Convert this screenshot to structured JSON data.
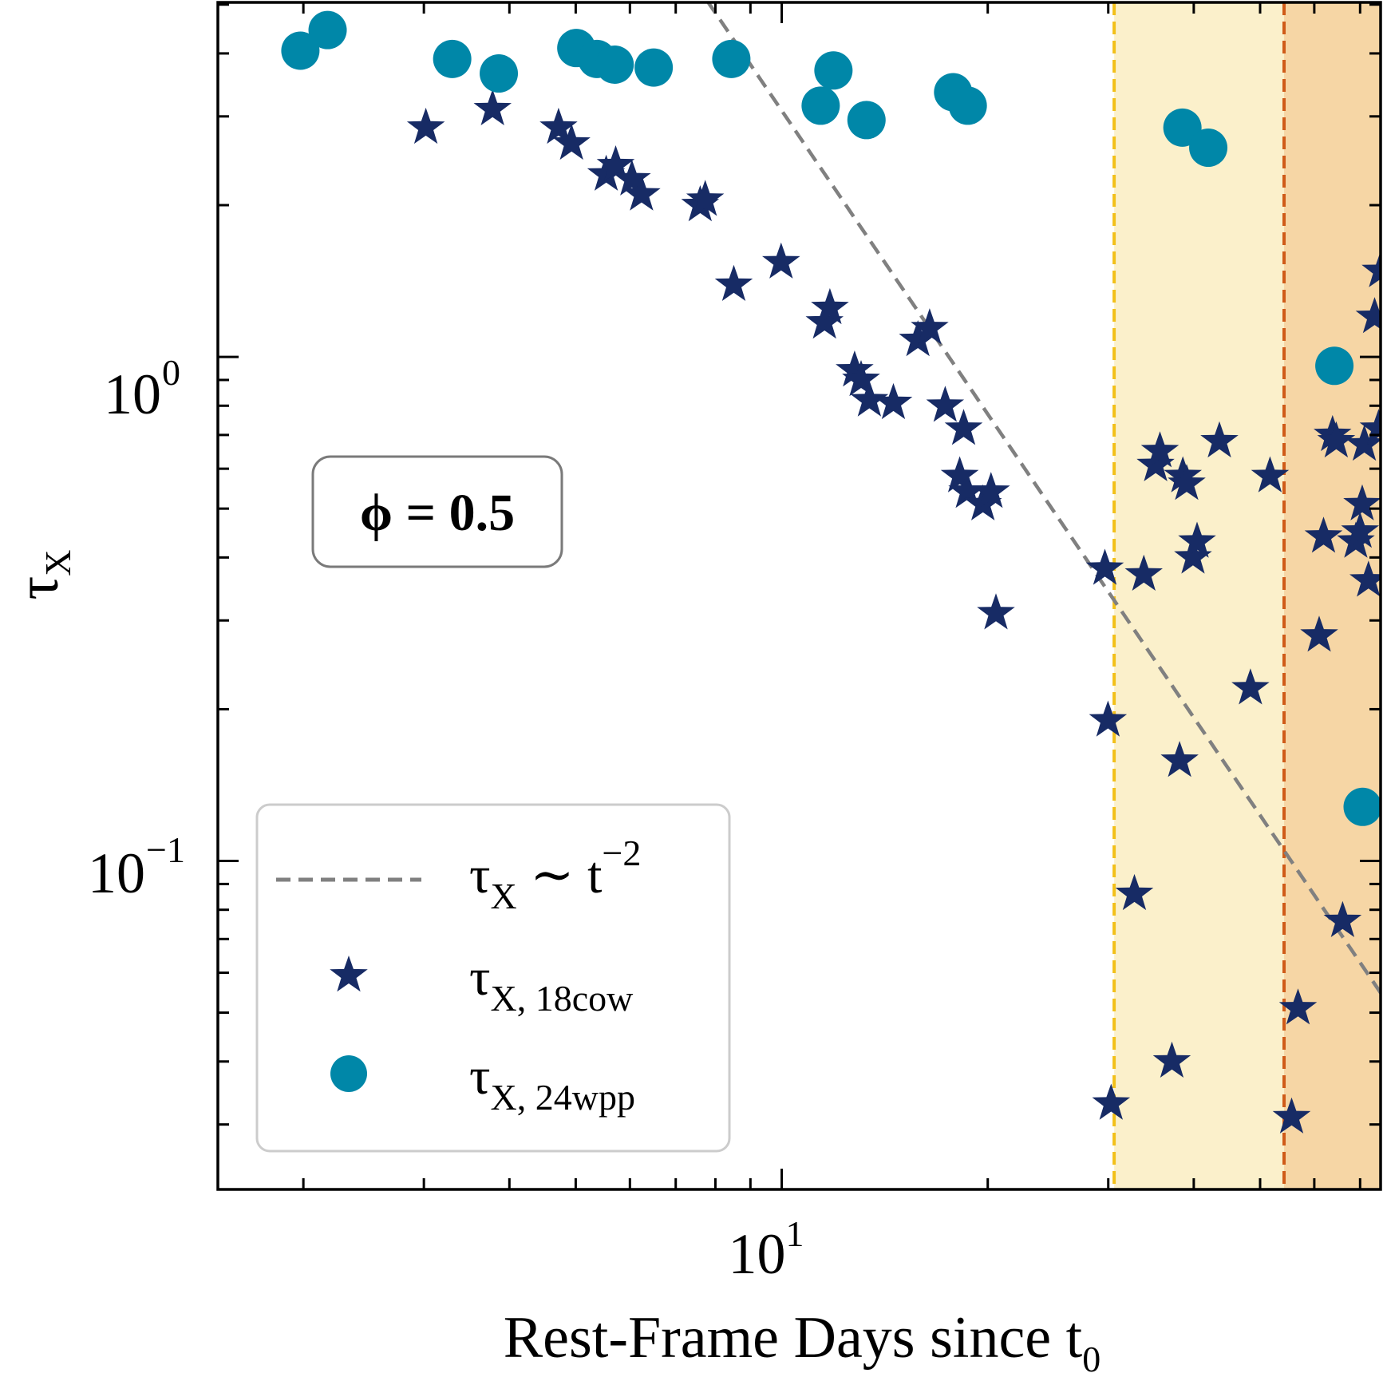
{
  "chart_data": {
    "type": "scatter",
    "xscale": "log",
    "yscale": "log",
    "xlim": [
      1.5,
      75
    ],
    "ylim": [
      0.0223,
      5.05
    ],
    "xlabel": "Rest-Frame Days since t",
    "xlabel_sub": "0",
    "ylabel": "τ",
    "ylabel_sub": "X",
    "x_ticks": [
      {
        "base": "10",
        "exp": "1",
        "value": 10
      }
    ],
    "y_ticks": [
      {
        "base": "10",
        "exp": "−1",
        "value": 0.1
      },
      {
        "base": "10",
        "exp": "0",
        "value": 1
      }
    ],
    "annotation": {
      "text": "ϕ = 0.5"
    },
    "shaded_regions": [
      {
        "x_start": 30.6,
        "x_end": 54.2,
        "color": "#fbf0cb"
      },
      {
        "x_start": 54.2,
        "x_end": 75,
        "color": "#f6d6a5"
      }
    ],
    "vertical_lines": [
      {
        "x": 30.6,
        "color": "#f2c019"
      },
      {
        "x": 54.2,
        "color": "#cf5a18"
      }
    ],
    "reference_line": {
      "label_base": "τ",
      "label_sub": "X",
      "label_rest": " ∼ t",
      "label_exp": "−2",
      "amplitude": 308,
      "exponent": -2,
      "color": "#808080"
    },
    "series": [
      {
        "name_base": "τ",
        "name_sub": "X, 18cow",
        "marker": "star",
        "color": "#172b65",
        "points": [
          {
            "x": 3.02,
            "y": 2.85
          },
          {
            "x": 3.78,
            "y": 3.1
          },
          {
            "x": 4.72,
            "y": 2.85
          },
          {
            "x": 4.93,
            "y": 2.65
          },
          {
            "x": 5.54,
            "y": 2.3
          },
          {
            "x": 5.72,
            "y": 2.4
          },
          {
            "x": 6.04,
            "y": 2.25
          },
          {
            "x": 6.24,
            "y": 2.1
          },
          {
            "x": 7.6,
            "y": 2.0
          },
          {
            "x": 7.73,
            "y": 2.05
          },
          {
            "x": 8.51,
            "y": 1.39
          },
          {
            "x": 9.98,
            "y": 1.54
          },
          {
            "x": 11.55,
            "y": 1.17
          },
          {
            "x": 11.76,
            "y": 1.25
          },
          {
            "x": 12.78,
            "y": 0.94
          },
          {
            "x": 13.06,
            "y": 0.9
          },
          {
            "x": 13.43,
            "y": 0.82
          },
          {
            "x": 14.56,
            "y": 0.81
          },
          {
            "x": 15.81,
            "y": 1.08
          },
          {
            "x": 16.45,
            "y": 1.14
          },
          {
            "x": 17.33,
            "y": 0.8
          },
          {
            "x": 18.2,
            "y": 0.58
          },
          {
            "x": 18.44,
            "y": 0.72
          },
          {
            "x": 18.67,
            "y": 0.54
          },
          {
            "x": 19.68,
            "y": 0.51
          },
          {
            "x": 20.22,
            "y": 0.54
          },
          {
            "x": 20.56,
            "y": 0.31
          },
          {
            "x": 29.66,
            "y": 0.38
          },
          {
            "x": 29.97,
            "y": 0.19
          },
          {
            "x": 30.29,
            "y": 0.033
          },
          {
            "x": 32.76,
            "y": 0.086
          },
          {
            "x": 33.81,
            "y": 0.37
          },
          {
            "x": 35.18,
            "y": 0.61
          },
          {
            "x": 35.7,
            "y": 0.65
          },
          {
            "x": 37.16,
            "y": 0.04
          },
          {
            "x": 38.14,
            "y": 0.158
          },
          {
            "x": 38.56,
            "y": 0.58
          },
          {
            "x": 39.06,
            "y": 0.56
          },
          {
            "x": 39.9,
            "y": 0.4
          },
          {
            "x": 40.45,
            "y": 0.43
          },
          {
            "x": 43.6,
            "y": 0.68
          },
          {
            "x": 48.4,
            "y": 0.22
          },
          {
            "x": 51.7,
            "y": 0.58
          },
          {
            "x": 55.6,
            "y": 0.031
          },
          {
            "x": 56.8,
            "y": 0.051
          },
          {
            "x": 61.0,
            "y": 0.28
          },
          {
            "x": 61.9,
            "y": 0.44
          },
          {
            "x": 63.8,
            "y": 0.7
          },
          {
            "x": 64.6,
            "y": 0.68
          },
          {
            "x": 66.0,
            "y": 0.076
          },
          {
            "x": 69.0,
            "y": 0.43
          },
          {
            "x": 70.0,
            "y": 0.45
          },
          {
            "x": 70.5,
            "y": 0.51
          },
          {
            "x": 71.0,
            "y": 0.67
          },
          {
            "x": 72.0,
            "y": 0.36
          },
          {
            "x": 73.5,
            "y": 1.2
          },
          {
            "x": 74.5,
            "y": 0.72
          },
          {
            "x": 75.0,
            "y": 1.48
          }
        ]
      },
      {
        "name_base": "τ",
        "name_sub": "X, 24wpp",
        "marker": "circle",
        "color": "#0087a8",
        "points": [
          {
            "x": 1.98,
            "y": 4.05
          },
          {
            "x": 2.17,
            "y": 4.45
          },
          {
            "x": 3.3,
            "y": 3.9
          },
          {
            "x": 3.86,
            "y": 3.65
          },
          {
            "x": 5.01,
            "y": 4.1
          },
          {
            "x": 5.37,
            "y": 3.9
          },
          {
            "x": 5.7,
            "y": 3.8
          },
          {
            "x": 6.5,
            "y": 3.75
          },
          {
            "x": 8.44,
            "y": 3.9
          },
          {
            "x": 11.4,
            "y": 3.15
          },
          {
            "x": 11.9,
            "y": 3.7
          },
          {
            "x": 13.3,
            "y": 2.95
          },
          {
            "x": 17.8,
            "y": 3.35
          },
          {
            "x": 18.7,
            "y": 3.15
          },
          {
            "x": 38.5,
            "y": 2.85
          },
          {
            "x": 42.0,
            "y": 2.6
          },
          {
            "x": 64.2,
            "y": 0.96
          },
          {
            "x": 70.6,
            "y": 0.128
          }
        ]
      }
    ],
    "legend_position": "lower-left"
  }
}
